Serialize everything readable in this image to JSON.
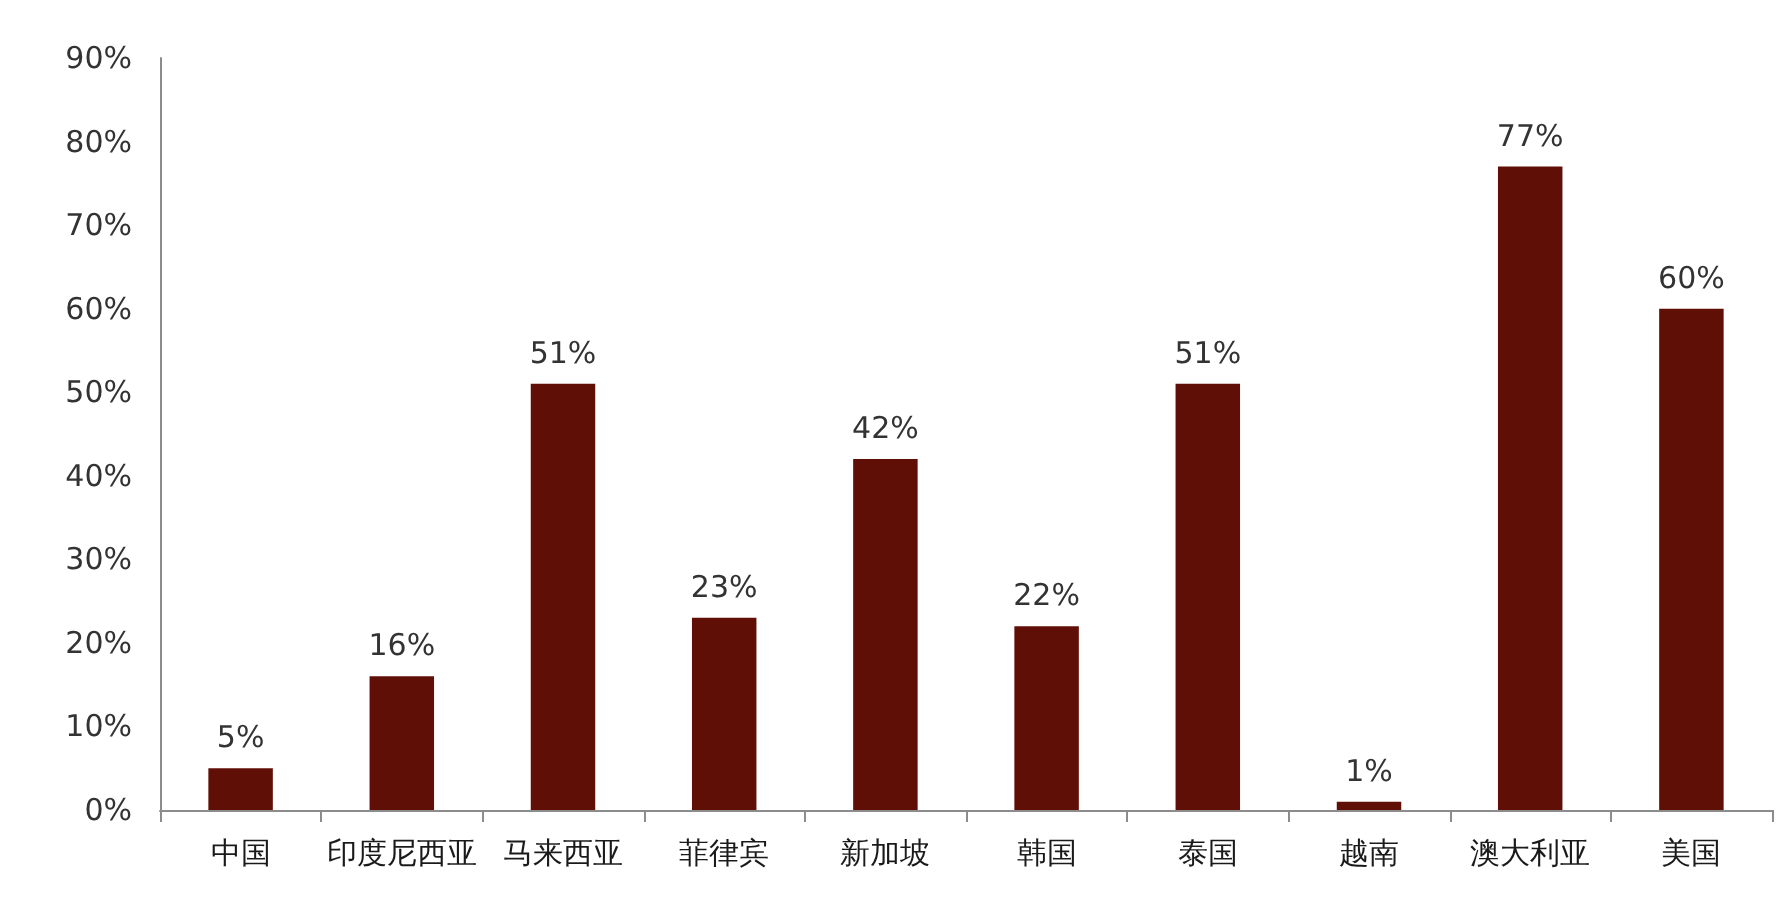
{
  "chart_data": {
    "type": "bar",
    "categories": [
      "中国",
      "印度尼西亚",
      "马来西亚",
      "菲律宾",
      "新加坡",
      "韩国",
      "泰国",
      "越南",
      "澳大利亚",
      "美国"
    ],
    "values": [
      5,
      16,
      51,
      23,
      42,
      22,
      51,
      1,
      77,
      60
    ],
    "value_labels": [
      "5%",
      "16%",
      "51%",
      "23%",
      "42%",
      "22%",
      "51%",
      "1%",
      "77%",
      "60%"
    ],
    "color": "#600f07",
    "ylim": [
      0,
      90
    ],
    "yticks": [
      {
        "value": 0,
        "label": "0%"
      },
      {
        "value": 10,
        "label": "10%"
      },
      {
        "value": 20,
        "label": "20%"
      },
      {
        "value": 30,
        "label": "30%"
      },
      {
        "value": 40,
        "label": "40%"
      },
      {
        "value": 50,
        "label": "50%"
      },
      {
        "value": 60,
        "label": "60%"
      },
      {
        "value": 70,
        "label": "70%"
      },
      {
        "value": 80,
        "label": "80%"
      },
      {
        "value": 90,
        "label": "90%"
      }
    ],
    "grid": false
  }
}
